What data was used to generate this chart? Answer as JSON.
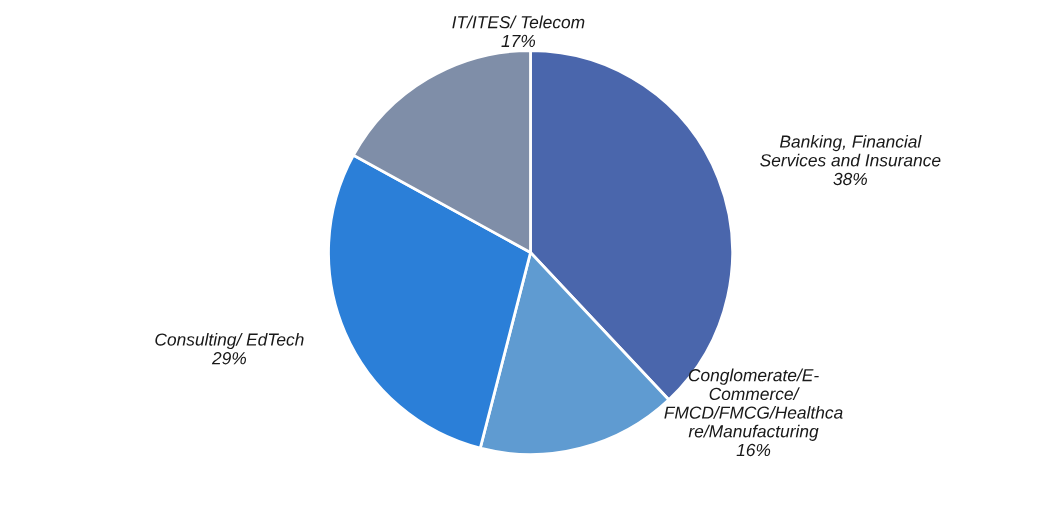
{
  "chart_data": {
    "type": "pie",
    "categories": [
      "Banking, Financial\nServices and Insurance",
      "Conglomerate/E-\nCommerce/\nFMCD/FMCG/Healthca\nre/Manufacturing",
      "Consulting/ EdTech",
      "IT/ITES/ Telecom"
    ],
    "values": [
      38,
      16,
      29,
      17
    ],
    "colors": [
      "#4a66ac",
      "#5f9bd1",
      "#2b7fd8",
      "#7f8ea8"
    ],
    "value_labels": [
      "38%",
      "16%",
      "29%",
      "17%"
    ],
    "legend": false
  }
}
